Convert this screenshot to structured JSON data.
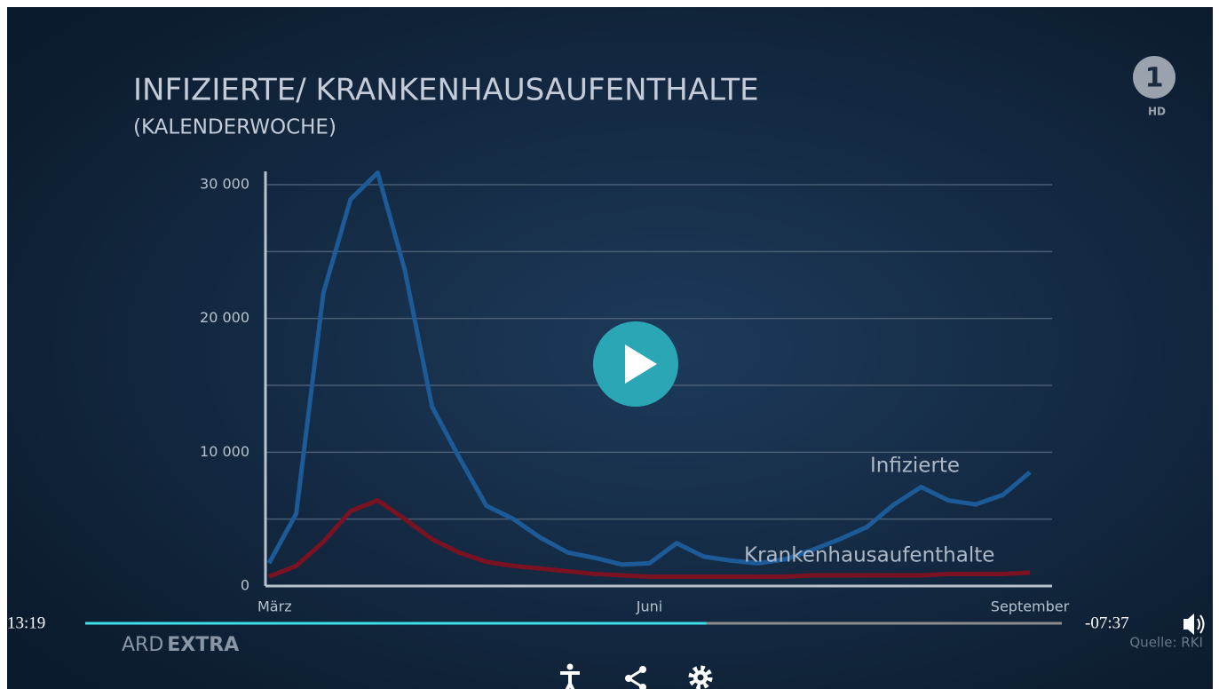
{
  "chart_data": {
    "type": "line",
    "title": "INFIZIERTE/ KRANKENHAUSAUFENTHALTE",
    "subtitle": "(KALENDERWOCHE)",
    "categories": [
      "März",
      null,
      null,
      null,
      null,
      null,
      null,
      null,
      null,
      null,
      null,
      null,
      null,
      null,
      "Juni",
      null,
      null,
      null,
      null,
      null,
      null,
      null,
      null,
      null,
      null,
      null,
      null,
      null,
      "September"
    ],
    "series": [
      {
        "name": "Infizierte",
        "color": "#1d5a98",
        "values": [
          1700,
          5400,
          21900,
          28900,
          30900,
          23600,
          13400,
          9600,
          6000,
          5000,
          3600,
          2500,
          2100,
          1600,
          1700,
          3200,
          2200,
          1900,
          1700,
          2000,
          2700,
          3500,
          4400,
          6100,
          7400,
          6400,
          6100,
          6800,
          8500
        ]
      },
      {
        "name": "Krankenhausaufenthalte",
        "color": "#7a1222",
        "values": [
          700,
          1500,
          3300,
          5600,
          6400,
          5000,
          3500,
          2500,
          1800,
          1500,
          1300,
          1100,
          900,
          800,
          700,
          700,
          700,
          700,
          700,
          700,
          800,
          800,
          800,
          800,
          800,
          900,
          900,
          900,
          1000
        ]
      }
    ],
    "ylim": [
      0,
      30000
    ],
    "yticks": [
      {
        "value": 0,
        "label": "0"
      },
      {
        "value": 10000,
        "label": "10 000"
      },
      {
        "value": 20000,
        "label": "20 000"
      },
      {
        "value": 30000,
        "label": "30 000"
      }
    ],
    "y_minor_ticks": [
      5000,
      15000,
      25000
    ],
    "grid": true,
    "source": "Quelle: RKI"
  },
  "branding": {
    "logo": "1",
    "hd": "HD",
    "show_light": "ARD",
    "show_bold": "EXTRA"
  },
  "player": {
    "elapsed": "13:19",
    "remaining": "-07:37",
    "progress": 0.636
  }
}
